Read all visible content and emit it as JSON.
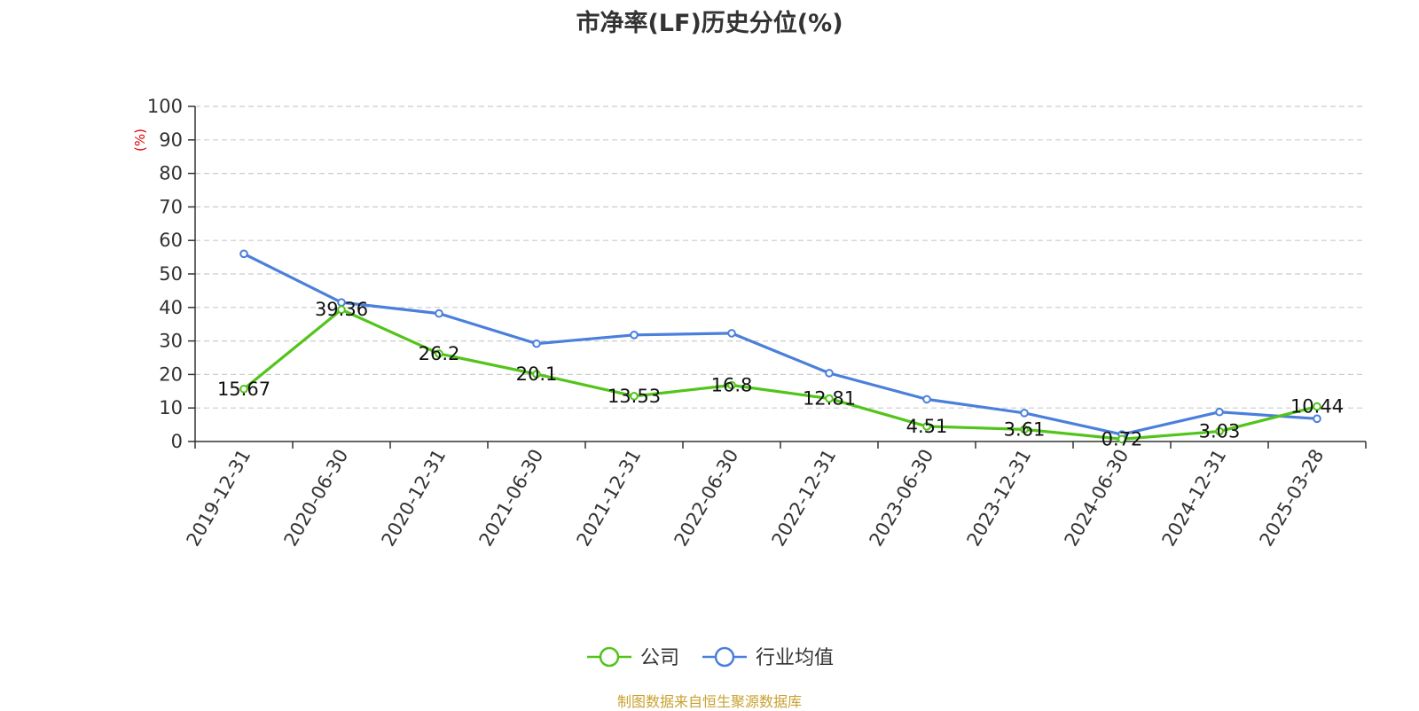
{
  "footer": "制图数据来自恒生聚源数据库",
  "chart_data": {
    "type": "line",
    "title": "市净率(LF)历史分位(%)",
    "ylabel": "(%)",
    "xlabel": "",
    "ylim": [
      0,
      100
    ],
    "yticks": [
      0,
      10,
      20,
      30,
      40,
      50,
      60,
      70,
      80,
      90,
      100
    ],
    "categories": [
      "2019-12-31",
      "2020-06-30",
      "2020-12-31",
      "2021-06-30",
      "2021-12-31",
      "2022-06-30",
      "2022-12-31",
      "2023-06-30",
      "2023-12-31",
      "2024-06-30",
      "2024-12-31",
      "2025-03-28"
    ],
    "grid": true,
    "legend_position": "bottom-center",
    "series": [
      {
        "name": "公司",
        "color": "#52c41a",
        "values": [
          15.67,
          39.36,
          26.2,
          20.1,
          13.53,
          16.8,
          12.81,
          4.51,
          3.61,
          0.72,
          3.03,
          10.44
        ],
        "labels": [
          "15.67",
          "39.36",
          "26.2",
          "20.1",
          "13.53",
          "16.8",
          "12.81",
          "4.51",
          "3.61",
          "0.72",
          "3.03",
          "10.44"
        ]
      },
      {
        "name": "行业均值",
        "color": "#4a7fdc",
        "values": [
          56.0,
          41.5,
          38.2,
          29.2,
          31.8,
          32.3,
          20.4,
          12.6,
          8.5,
          2.1,
          8.8,
          6.8
        ]
      }
    ]
  }
}
